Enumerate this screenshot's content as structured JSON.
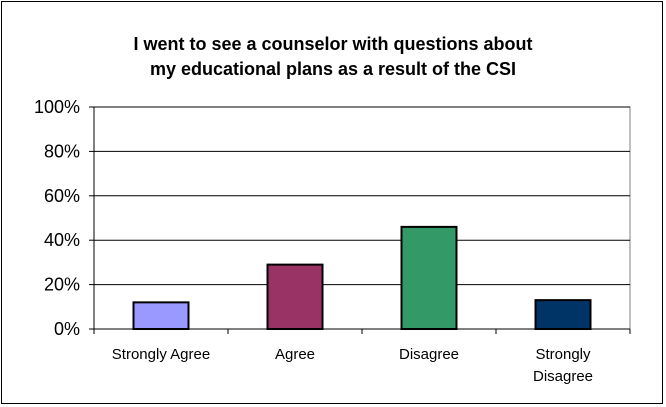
{
  "chart_data": {
    "type": "bar",
    "title_lines": [
      "I went to see a counselor with questions about",
      "my educational plans as a result of the CSI"
    ],
    "categories": [
      "Strongly Agree",
      "Agree",
      "Disagree",
      "Strongly Disagree"
    ],
    "category_lines": [
      [
        "Strongly Agree"
      ],
      [
        "Agree"
      ],
      [
        "Disagree"
      ],
      [
        "Strongly",
        "Disagree"
      ]
    ],
    "values": [
      12,
      29,
      46,
      13
    ],
    "bar_colors": [
      "#9999ff",
      "#993366",
      "#339966",
      "#003366"
    ],
    "ylim": [
      0,
      100
    ],
    "yticks": [
      0,
      20,
      40,
      60,
      80,
      100
    ],
    "ytick_labels": [
      "0%",
      "20%",
      "40%",
      "60%",
      "80%",
      "100%"
    ],
    "grid": true,
    "plot_background": "#ffffff",
    "gridline_color": "#000000"
  }
}
